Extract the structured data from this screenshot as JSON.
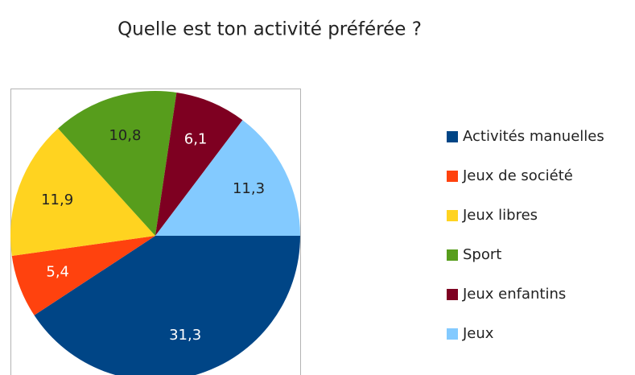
{
  "chart_data": {
    "type": "pie",
    "title": "Quelle est ton activité préférée ?",
    "categories": [
      "Activités manuelles",
      "Jeux de société",
      "Jeux libres",
      "Sport",
      "Jeux enfantins",
      "Jeux"
    ],
    "values": [
      31.3,
      5.4,
      11.9,
      10.8,
      6.1,
      11.3
    ],
    "value_labels": [
      "31,3",
      "5,4",
      "11,9",
      "10,8",
      "6,1",
      "11,3"
    ],
    "colors": [
      "#004586",
      "#ff420e",
      "#ffd320",
      "#579d1c",
      "#7e0021",
      "#83caff"
    ],
    "legend": "right"
  }
}
